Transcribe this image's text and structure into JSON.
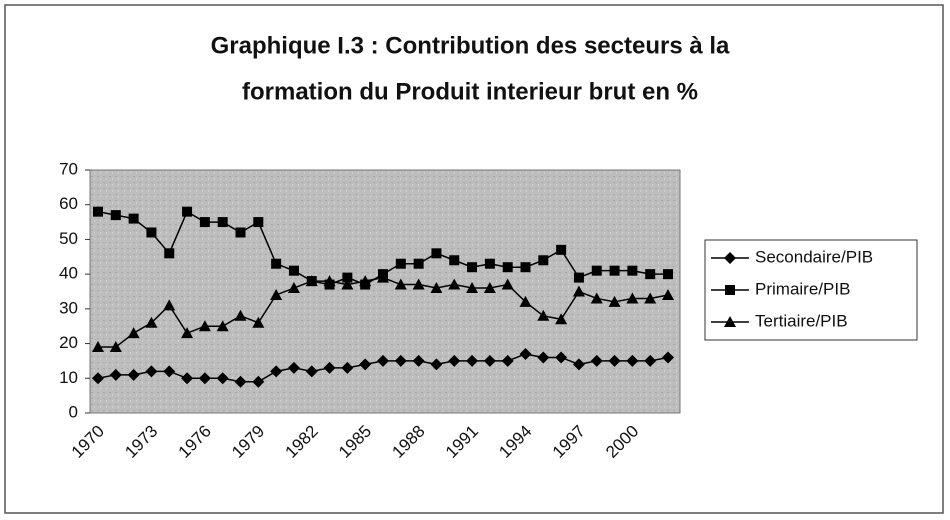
{
  "chart_data": {
    "type": "line",
    "title": [
      "Graphique I.3 : Contribution des secteurs à la",
      "formation du Produit interieur brut en %"
    ],
    "categories": [
      "1970",
      null,
      null,
      "1973",
      null,
      null,
      "1976",
      null,
      null,
      "1979",
      null,
      null,
      "1982",
      null,
      null,
      "1985",
      null,
      null,
      "1988",
      null,
      null,
      "1991",
      null,
      null,
      "1994",
      null,
      null,
      "1997",
      null,
      null,
      "2000",
      null,
      null
    ],
    "series": [
      {
        "name": "Secondaire/PIB",
        "color": "#000000",
        "marker": "diamond",
        "values": [
          10,
          11,
          11,
          12,
          12,
          10,
          10,
          10,
          9,
          9,
          12,
          13,
          12,
          13,
          13,
          14,
          15,
          15,
          15,
          14,
          15,
          15,
          15,
          15,
          17,
          16,
          16,
          14,
          15,
          15,
          15,
          15,
          16
        ]
      },
      {
        "name": "Primaire/PIB",
        "color": "#000000",
        "marker": "square",
        "values": [
          58,
          57,
          56,
          52,
          46,
          58,
          55,
          55,
          52,
          55,
          43,
          41,
          38,
          37,
          39,
          37,
          40,
          43,
          43,
          46,
          44,
          42,
          43,
          42,
          42,
          44,
          47,
          39,
          41,
          41,
          41,
          40,
          40
        ]
      },
      {
        "name": "Tertiaire/PIB",
        "color": "#000000",
        "marker": "triangle",
        "values": [
          19,
          19,
          23,
          26,
          31,
          23,
          25,
          25,
          28,
          26,
          34,
          36,
          38,
          38,
          37,
          38,
          39,
          37,
          37,
          36,
          37,
          36,
          36,
          37,
          32,
          28,
          27,
          35,
          33,
          32,
          33,
          33,
          34
        ]
      }
    ],
    "ylim": [
      0,
      70
    ],
    "yticks": [
      0,
      10,
      20,
      30,
      40,
      50,
      60,
      70
    ],
    "grid": false,
    "legend": "right"
  }
}
